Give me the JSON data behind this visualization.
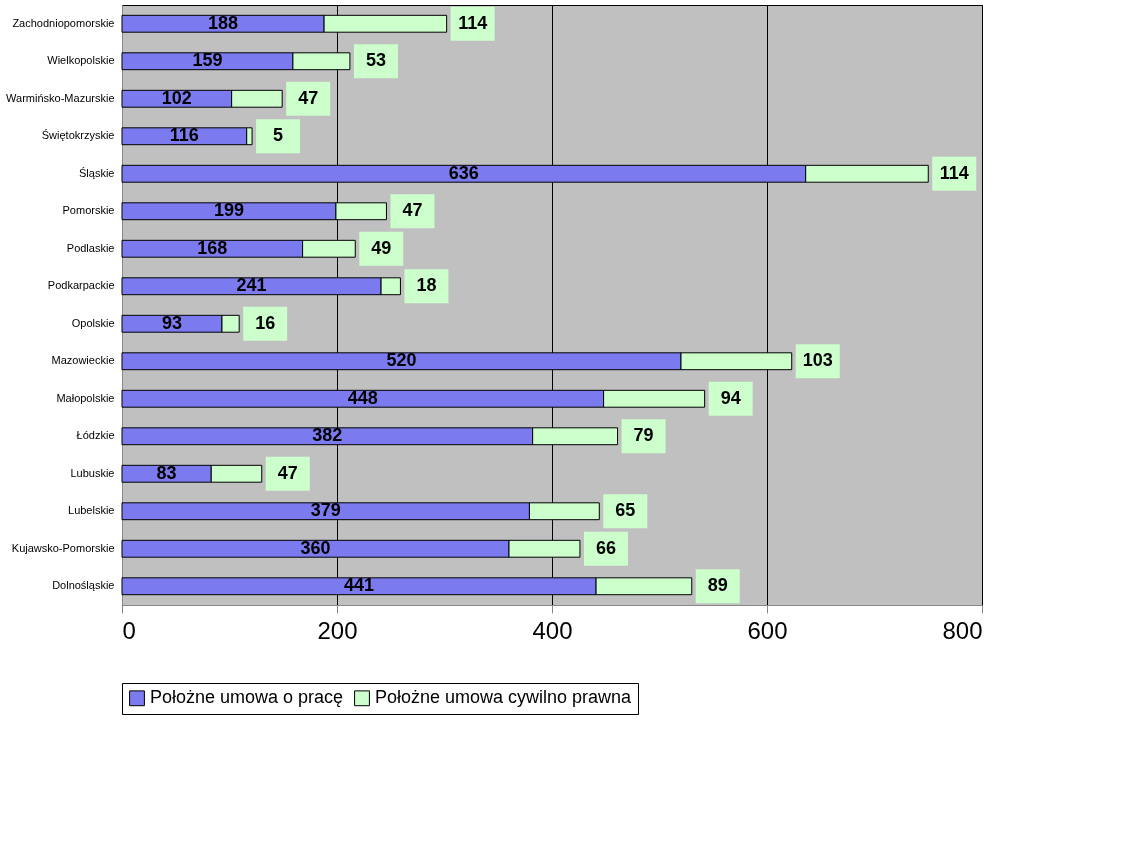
{
  "chart_data": {
    "type": "bar",
    "orientation": "horizontal",
    "stacked": true,
    "data_labels": true,
    "grid": "x",
    "legend": "bottom",
    "categories": [
      "Zachodniopomorskie",
      "Wielkopolskie",
      "Warmińsko-Mazurskie",
      "Świętokrzyskie",
      "Śląskie",
      "Pomorskie",
      "Podlaskie",
      "Podkarpackie",
      "Opolskie",
      "Mazowieckie",
      "Małopolskie",
      "Łódzkie",
      "Lubuskie",
      "Lubelskie",
      "Kujawsko-Pomorskie",
      "Dolnośląskie"
    ],
    "series": [
      {
        "name": "Położne umowa o pracę",
        "color": "#7b7bef",
        "values": [
          188,
          159,
          102,
          116,
          636,
          199,
          168,
          241,
          93,
          520,
          448,
          382,
          83,
          379,
          360,
          441
        ]
      },
      {
        "name": "Położne umowa cywilno prawna",
        "color": "#ccffcc",
        "values": [
          114,
          53,
          47,
          5,
          114,
          47,
          49,
          18,
          16,
          103,
          94,
          79,
          47,
          65,
          66,
          89
        ]
      }
    ],
    "xlim": [
      0,
      800
    ],
    "xticks": [
      0,
      200,
      400,
      600,
      800
    ]
  }
}
